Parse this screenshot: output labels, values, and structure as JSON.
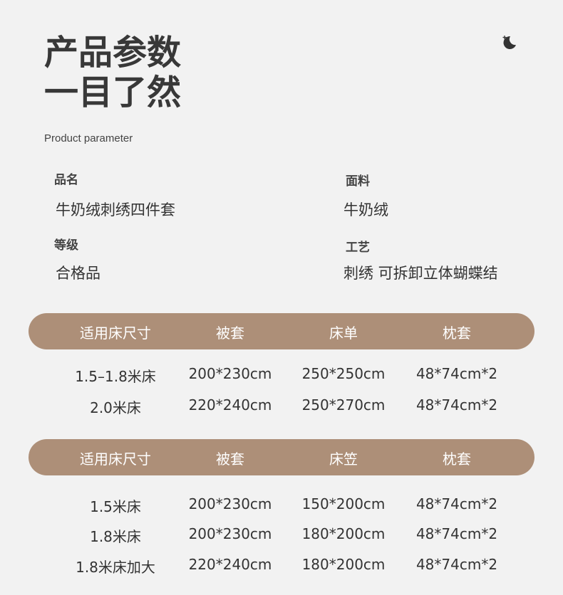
{
  "title_lines": [
    "产品参数",
    "一目了然"
  ],
  "subtitle": "Product parameter",
  "icon": "moon-stars-icon",
  "specs": [
    {
      "label": "品名",
      "value": "牛奶绒刺绣四件套"
    },
    {
      "label": "面料",
      "value": "牛奶绒"
    },
    {
      "label": "等级",
      "value": "合格品"
    },
    {
      "label": "工艺",
      "value": "刺绣 可拆卸立体蝴蝶结"
    }
  ],
  "accent": "#ad8f78",
  "tables": [
    {
      "headers": [
        "适用床尺寸",
        "被套",
        "床单",
        "枕套"
      ],
      "rows": [
        [
          "1.5–1.8米床",
          "200*230cm",
          "250*250cm",
          "48*74cm*2"
        ],
        [
          "2.0米床",
          "220*240cm",
          "250*270cm",
          "48*74cm*2"
        ]
      ]
    },
    {
      "headers": [
        "适用床尺寸",
        "被套",
        "床笠",
        "枕套"
      ],
      "rows": [
        [
          "1.5米床",
          "200*230cm",
          "150*200cm",
          "48*74cm*2"
        ],
        [
          "1.8米床",
          "200*230cm",
          "180*200cm",
          "48*74cm*2"
        ],
        [
          "1.8米床加大",
          "220*240cm",
          "180*200cm",
          "48*74cm*2"
        ]
      ]
    }
  ]
}
